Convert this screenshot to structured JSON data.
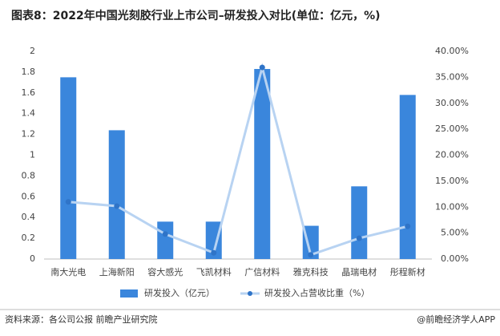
{
  "chart_data": {
    "type": "bar_line",
    "title": "图表8：2022年中国光刻胶行业上市公司–研发投入对比(单位：亿元，%)",
    "categories": [
      "南大光电",
      "上海新阳",
      "容大感光",
      "飞凯材料",
      "广信材料",
      "雅克科技",
      "晶瑞电材",
      "彤程新材"
    ],
    "series": [
      {
        "name": "研发投入（亿元）",
        "type": "bar",
        "color": "#3a86dc",
        "values": [
          1.75,
          1.24,
          0.36,
          0.36,
          1.83,
          0.32,
          0.7,
          1.58
        ]
      },
      {
        "name": "研发投入占营收比重（%）",
        "type": "line",
        "axis": "y2",
        "color": "#b8d3f2",
        "marker_color": "#2f74c8",
        "values": [
          11.0,
          10.2,
          4.8,
          1.2,
          36.9,
          0.8,
          4.0,
          6.3
        ]
      }
    ],
    "ylim": [
      0,
      2
    ],
    "yticks": [
      0,
      0.2,
      0.4,
      0.6,
      0.8,
      1,
      1.2,
      1.4,
      1.6,
      1.8,
      2
    ],
    "y2lim": [
      0,
      40
    ],
    "y2ticks": [
      {
        "value": 0,
        "label": "0.00%"
      },
      {
        "value": 5,
        "label": "5.00%"
      },
      {
        "value": 10,
        "label": "10.00%"
      },
      {
        "value": 15,
        "label": "15.00%"
      },
      {
        "value": 20,
        "label": "20.00%"
      },
      {
        "value": 25,
        "label": "25.00%"
      },
      {
        "value": 30,
        "label": "30.00%"
      },
      {
        "value": 35,
        "label": "35.00%"
      },
      {
        "value": 40,
        "label": "40.00%"
      }
    ],
    "grid": false,
    "legend": "bottom",
    "source": "资料来源：各公司公报 前瞻产业研究院",
    "credit": "@前瞻经济学人APP"
  }
}
